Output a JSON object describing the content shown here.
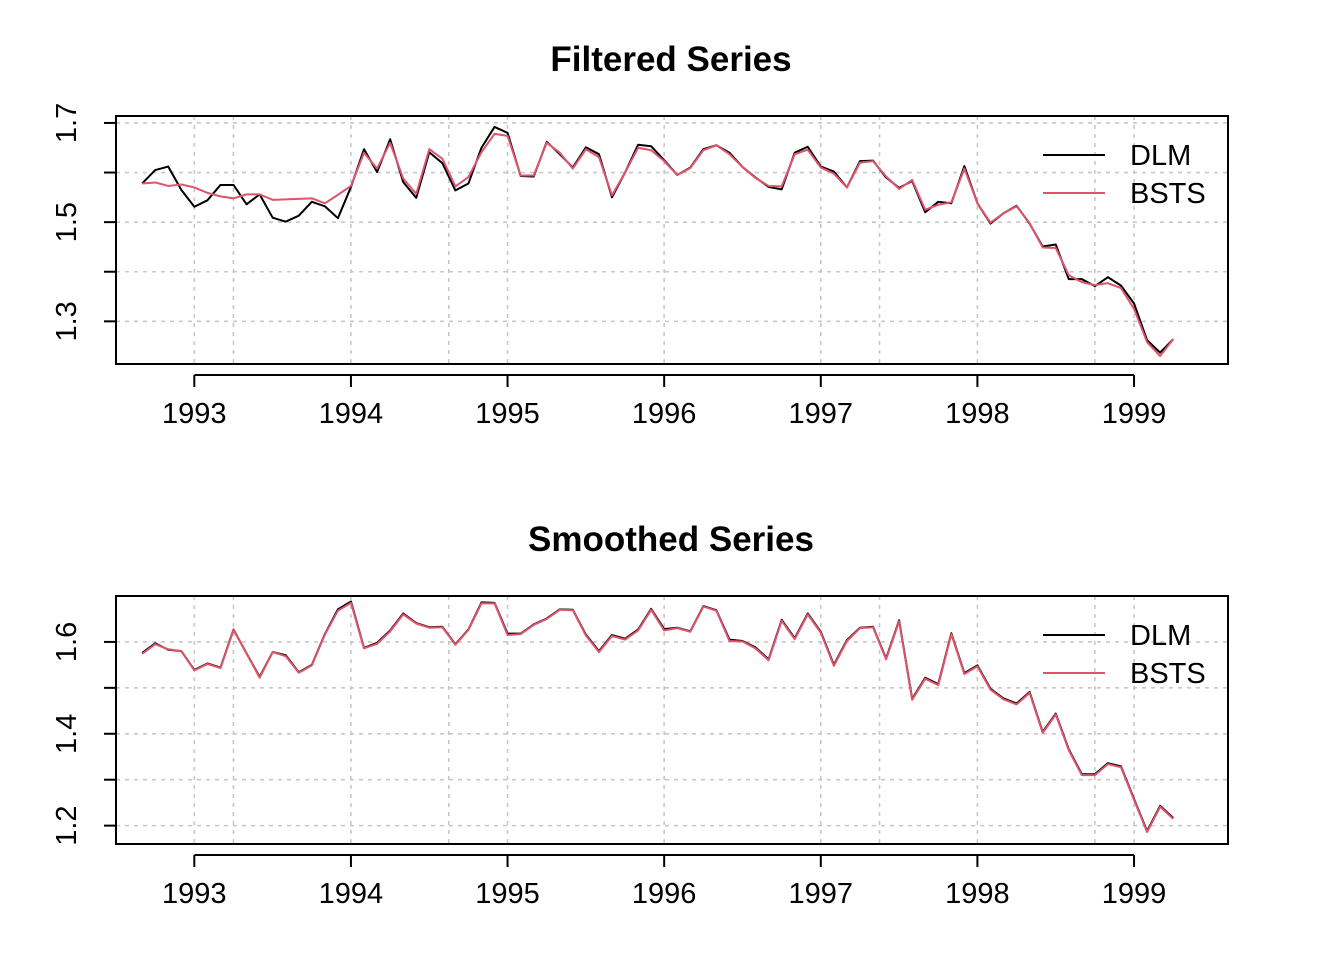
{
  "colors": {
    "dlm": "#000000",
    "bsts": "#DF536B"
  },
  "chart_data": [
    {
      "type": "line",
      "title": "Filtered Series",
      "xlabel": "",
      "ylabel": "",
      "xlim": [
        1992.5,
        1999.6
      ],
      "ylim": [
        1.214,
        1.714
      ],
      "x_ticks": [
        1993,
        1994,
        1995,
        1996,
        1997,
        1998,
        1999
      ],
      "y_ticks": [
        1.3,
        1.5,
        1.7
      ],
      "y_grid": [
        1.3,
        1.4,
        1.5,
        1.6,
        1.7
      ],
      "x_grid": [
        1993.25,
        1994.625,
        1997.375,
        1998.75
      ],
      "grid": true,
      "legend_position": "top-right",
      "x_start": 1992.667,
      "x_step": 0.08333,
      "series": [
        {
          "name": "DLM",
          "color_key": "dlm",
          "values": [
            1.578,
            1.605,
            1.612,
            1.565,
            1.531,
            1.544,
            1.575,
            1.575,
            1.536,
            1.556,
            1.509,
            1.501,
            1.513,
            1.541,
            1.532,
            1.508,
            1.571,
            1.647,
            1.601,
            1.667,
            1.581,
            1.549,
            1.641,
            1.619,
            1.564,
            1.578,
            1.65,
            1.692,
            1.68,
            1.593,
            1.592,
            1.662,
            1.637,
            1.61,
            1.651,
            1.637,
            1.55,
            1.6,
            1.656,
            1.653,
            1.625,
            1.595,
            1.61,
            1.647,
            1.655,
            1.64,
            1.611,
            1.59,
            1.571,
            1.566,
            1.64,
            1.652,
            1.612,
            1.602,
            1.57,
            1.623,
            1.624,
            1.59,
            1.569,
            1.583,
            1.52,
            1.541,
            1.538,
            1.613,
            1.538,
            1.497,
            1.518,
            1.533,
            1.497,
            1.451,
            1.455,
            1.385,
            1.385,
            1.371,
            1.389,
            1.372,
            1.336,
            1.262,
            1.237,
            1.264
          ]
        },
        {
          "name": "BSTS",
          "color_key": "bsts",
          "values": [
            1.578,
            1.58,
            1.573,
            1.576,
            1.57,
            1.559,
            1.552,
            1.548,
            1.556,
            1.556,
            1.545,
            1.546,
            1.547,
            1.548,
            1.538,
            1.555,
            1.573,
            1.64,
            1.608,
            1.66,
            1.588,
            1.557,
            1.647,
            1.628,
            1.572,
            1.591,
            1.641,
            1.678,
            1.674,
            1.594,
            1.594,
            1.66,
            1.64,
            1.608,
            1.647,
            1.631,
            1.554,
            1.6,
            1.65,
            1.645,
            1.623,
            1.595,
            1.609,
            1.645,
            1.655,
            1.637,
            1.611,
            1.589,
            1.573,
            1.572,
            1.637,
            1.646,
            1.61,
            1.598,
            1.57,
            1.62,
            1.623,
            1.592,
            1.567,
            1.585,
            1.525,
            1.535,
            1.54,
            1.608,
            1.538,
            1.499,
            1.518,
            1.532,
            1.498,
            1.449,
            1.448,
            1.393,
            1.379,
            1.373,
            1.377,
            1.367,
            1.325,
            1.258,
            1.23,
            1.264
          ]
        }
      ]
    },
    {
      "type": "line",
      "title": "Smoothed Series",
      "xlabel": "",
      "ylabel": "",
      "xlim": [
        1992.5,
        1999.6
      ],
      "ylim": [
        1.16,
        1.7
      ],
      "x_ticks": [
        1993,
        1994,
        1995,
        1996,
        1997,
        1998,
        1999
      ],
      "y_ticks": [
        1.2,
        1.4,
        1.6
      ],
      "y_grid": [
        1.2,
        1.3,
        1.4,
        1.5,
        1.6
      ],
      "x_grid": [
        1993.25,
        1994.625,
        1997.375,
        1998.75
      ],
      "grid": true,
      "legend_position": "top-right",
      "x_start": 1992.667,
      "x_step": 0.08333,
      "series": [
        {
          "name": "DLM",
          "color_key": "dlm",
          "values": [
            1.576,
            1.597,
            1.583,
            1.58,
            1.539,
            1.553,
            1.544,
            1.627,
            1.575,
            1.524,
            1.578,
            1.571,
            1.534,
            1.55,
            1.617,
            1.671,
            1.688,
            1.587,
            1.598,
            1.625,
            1.662,
            1.641,
            1.632,
            1.633,
            1.595,
            1.627,
            1.686,
            1.685,
            1.618,
            1.618,
            1.638,
            1.651,
            1.671,
            1.67,
            1.616,
            1.58,
            1.615,
            1.607,
            1.627,
            1.672,
            1.628,
            1.631,
            1.623,
            1.678,
            1.669,
            1.605,
            1.602,
            1.588,
            1.562,
            1.648,
            1.608,
            1.662,
            1.622,
            1.55,
            1.604,
            1.631,
            1.633,
            1.564,
            1.647,
            1.476,
            1.522,
            1.508,
            1.619,
            1.532,
            1.549,
            1.498,
            1.477,
            1.466,
            1.491,
            1.404,
            1.444,
            1.366,
            1.312,
            1.312,
            1.336,
            1.329,
            1.258,
            1.188,
            1.243,
            1.217
          ]
        },
        {
          "name": "BSTS",
          "color_key": "bsts",
          "values": [
            1.574,
            1.595,
            1.584,
            1.58,
            1.538,
            1.552,
            1.543,
            1.626,
            1.575,
            1.522,
            1.578,
            1.569,
            1.533,
            1.549,
            1.616,
            1.668,
            1.685,
            1.586,
            1.596,
            1.623,
            1.66,
            1.64,
            1.631,
            1.632,
            1.594,
            1.626,
            1.684,
            1.684,
            1.615,
            1.617,
            1.637,
            1.65,
            1.67,
            1.669,
            1.614,
            1.578,
            1.613,
            1.605,
            1.625,
            1.67,
            1.625,
            1.63,
            1.622,
            1.677,
            1.668,
            1.602,
            1.601,
            1.586,
            1.56,
            1.646,
            1.606,
            1.66,
            1.62,
            1.548,
            1.602,
            1.63,
            1.632,
            1.562,
            1.645,
            1.474,
            1.52,
            1.506,
            1.617,
            1.53,
            1.547,
            1.496,
            1.475,
            1.464,
            1.489,
            1.402,
            1.442,
            1.364,
            1.31,
            1.31,
            1.334,
            1.327,
            1.256,
            1.186,
            1.241,
            1.215
          ]
        }
      ]
    }
  ],
  "panels": [
    {
      "title": "Filtered Series",
      "legend": [
        "DLM",
        "BSTS"
      ],
      "x_tick_labels": [
        "1993",
        "1994",
        "1995",
        "1996",
        "1997",
        "1998",
        "1999"
      ],
      "y_tick_labels": [
        "1.3",
        "1.5",
        "1.7"
      ]
    },
    {
      "title": "Smoothed Series",
      "legend": [
        "DLM",
        "BSTS"
      ],
      "x_tick_labels": [
        "1993",
        "1994",
        "1995",
        "1996",
        "1997",
        "1998",
        "1999"
      ],
      "y_tick_labels": [
        "1.2",
        "1.4",
        "1.6"
      ]
    }
  ]
}
